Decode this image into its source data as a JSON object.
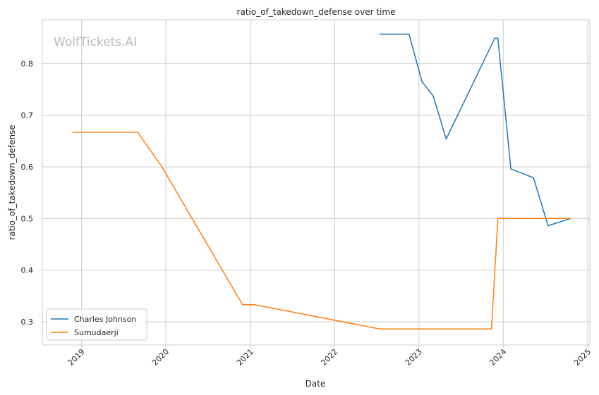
{
  "chart_data": {
    "type": "line",
    "title": "ratio_of_takedown_defense over time",
    "xlabel": "Date",
    "ylabel": "ratio_of_takedown_defense",
    "watermark": "WolfTickets.AI",
    "xlim": [
      "2018-07-15",
      "2025-01-10"
    ],
    "ylim": [
      0.255,
      0.885
    ],
    "x_ticks": [
      {
        "date": "2019-01-01",
        "label": "2019"
      },
      {
        "date": "2020-01-01",
        "label": "2020"
      },
      {
        "date": "2021-01-01",
        "label": "2021"
      },
      {
        "date": "2022-01-01",
        "label": "2022"
      },
      {
        "date": "2023-01-01",
        "label": "2023"
      },
      {
        "date": "2024-01-01",
        "label": "2024"
      },
      {
        "date": "2025-01-01",
        "label": "2025"
      }
    ],
    "y_ticks": [
      0.3,
      0.4,
      0.5,
      0.6,
      0.7,
      0.8
    ],
    "grid": true,
    "legend_position": "lower-left",
    "series": [
      {
        "name": "Charles Johnson",
        "color": "#1f77b4",
        "points": [
          [
            "2022-07-16",
            0.857
          ],
          [
            "2022-11-19",
            0.857
          ],
          [
            "2023-01-14",
            0.765
          ],
          [
            "2023-03-04",
            0.737
          ],
          [
            "2023-04-29",
            0.654
          ],
          [
            "2023-11-25",
            0.849
          ],
          [
            "2023-12-09",
            0.849
          ],
          [
            "2024-02-03",
            0.596
          ],
          [
            "2024-05-11",
            0.579
          ],
          [
            "2024-07-13",
            0.486
          ],
          [
            "2024-10-19",
            0.5
          ]
        ]
      },
      {
        "name": "Sumudaerji",
        "color": "#ff7f0e",
        "points": [
          [
            "2018-11-24",
            0.667
          ],
          [
            "2019-09-01",
            0.667
          ],
          [
            "2019-12-15",
            0.6
          ],
          [
            "2020-11-28",
            0.333
          ],
          [
            "2021-01-20",
            0.333
          ],
          [
            "2022-07-16",
            0.286
          ],
          [
            "2023-11-11",
            0.286
          ],
          [
            "2023-12-09",
            0.5
          ],
          [
            "2024-10-19",
            0.5
          ]
        ]
      }
    ]
  }
}
